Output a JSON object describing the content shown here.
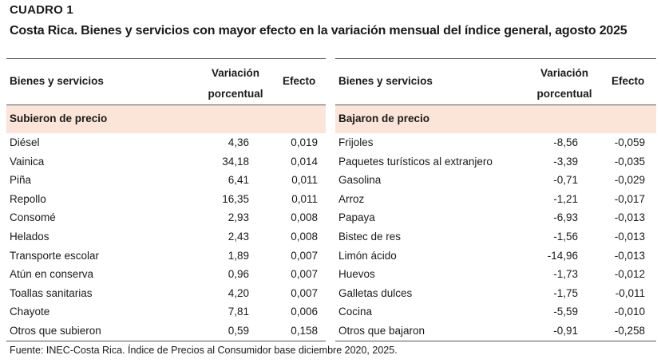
{
  "header": {
    "label": "CUADRO 1",
    "title": "Costa Rica. Bienes y servicios con mayor efecto en la variación mensual del índice general, agosto 2025"
  },
  "table_headers": {
    "name": "Bienes y servicios",
    "variation_line1": "Variación",
    "variation_line2": "porcentual",
    "effect": "Efecto"
  },
  "left": {
    "group": "Subieron de precio",
    "rows": [
      {
        "name": "Diésel",
        "variation": "4,36",
        "effect": "0,019"
      },
      {
        "name": "Vainica",
        "variation": "34,18",
        "effect": "0,014"
      },
      {
        "name": "Piña",
        "variation": "6,41",
        "effect": "0,011"
      },
      {
        "name": "Repollo",
        "variation": "16,35",
        "effect": "0,011"
      },
      {
        "name": "Consomé",
        "variation": "2,93",
        "effect": "0,008"
      },
      {
        "name": "Helados",
        "variation": "2,43",
        "effect": "0,008"
      },
      {
        "name": "Transporte escolar",
        "variation": "1,89",
        "effect": "0,007"
      },
      {
        "name": "Atún en conserva",
        "variation": "0,96",
        "effect": "0,007"
      },
      {
        "name": "Toallas sanitarias",
        "variation": "4,20",
        "effect": "0,007"
      },
      {
        "name": "Chayote",
        "variation": "7,81",
        "effect": "0,006"
      },
      {
        "name": "Otros que subieron",
        "variation": "0,59",
        "effect": "0,158"
      }
    ]
  },
  "right": {
    "group": "Bajaron de precio",
    "rows": [
      {
        "name": "Frijoles",
        "variation": "-8,56",
        "effect": "-0,059"
      },
      {
        "name": "Paquetes turísticos al extranjero",
        "variation": "-3,39",
        "effect": "-0,035"
      },
      {
        "name": "Gasolina",
        "variation": "-0,71",
        "effect": "-0,029"
      },
      {
        "name": "Arroz",
        "variation": "-1,21",
        "effect": "-0,017"
      },
      {
        "name": "Papaya",
        "variation": "-6,93",
        "effect": "-0,013"
      },
      {
        "name": "Bistec de res",
        "variation": "-1,56",
        "effect": "-0,013"
      },
      {
        "name": "Limón ácido",
        "variation": "-14,96",
        "effect": "-0,013"
      },
      {
        "name": "Huevos",
        "variation": "-1,73",
        "effect": "-0,012"
      },
      {
        "name": "Galletas dulces",
        "variation": "-1,75",
        "effect": "-0,011"
      },
      {
        "name": "Cocina",
        "variation": "-5,59",
        "effect": "-0,010"
      },
      {
        "name": "Otros que bajaron",
        "variation": "-0,91",
        "effect": "-0,258"
      }
    ]
  },
  "source": "Fuente: INEC-Costa Rica. Índice de Precios al Consumidor base diciembre 2020, 2025."
}
